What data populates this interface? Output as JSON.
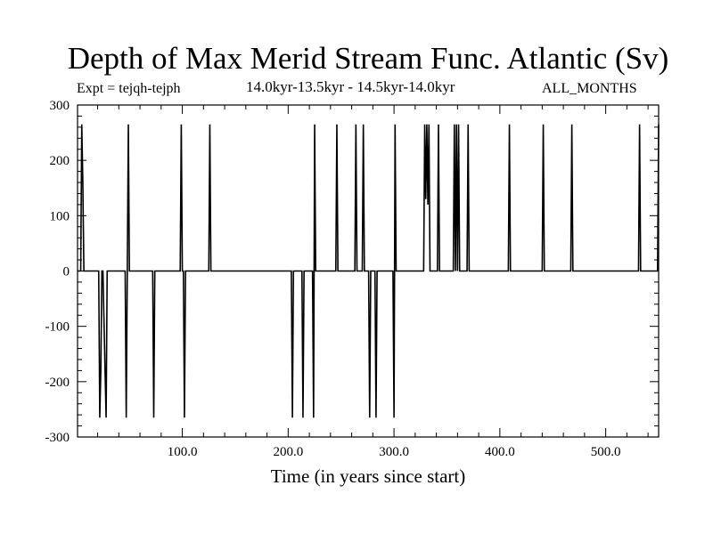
{
  "header": {
    "title": "Depth of Max Merid Stream Func. Atlantic (Sv)",
    "experiment": "Expt = tejqh-tejph",
    "subtitle": "14.0kyr-13.5kyr - 14.5kyr-14.0kyr",
    "months": "ALL_MONTHS"
  },
  "chart_data": {
    "type": "line",
    "title": "Depth of Max Merid Stream Func. Atlantic (Sv)",
    "xlabel": "Time (in years since start)",
    "ylabel": "",
    "xlim": [
      1,
      550
    ],
    "ylim": [
      -300,
      300
    ],
    "x_ticks": [
      {
        "value": 100,
        "label": "100.0"
      },
      {
        "value": 200,
        "label": "200.0"
      },
      {
        "value": 300,
        "label": "300.0"
      },
      {
        "value": 400,
        "label": "400.0"
      },
      {
        "value": 500,
        "label": "500.0"
      }
    ],
    "y_ticks": [
      {
        "value": 300,
        "label": "300"
      },
      {
        "value": 200,
        "label": "200"
      },
      {
        "value": 100,
        "label": "100"
      },
      {
        "value": 0,
        "label": "0"
      },
      {
        "value": -100,
        "label": "-100"
      },
      {
        "value": -200,
        "label": "-200"
      },
      {
        "value": -300,
        "label": "-300"
      }
    ],
    "grid": false,
    "series": [
      {
        "x": [
          1,
          4,
          5,
          6,
          7,
          8,
          21,
          22,
          23,
          24,
          25,
          27,
          28,
          29,
          30,
          31,
          32,
          46,
          47,
          48,
          49,
          50,
          51,
          72,
          73,
          74,
          98,
          99,
          100,
          101,
          102,
          103,
          104,
          125,
          126,
          127,
          203,
          204,
          205,
          206,
          213,
          214,
          215,
          216,
          223,
          224,
          225,
          226,
          227,
          245,
          246,
          247,
          263,
          264,
          265,
          270,
          271,
          272,
          276,
          277,
          278,
          282,
          283,
          284,
          299,
          300,
          301,
          302,
          303,
          328,
          329,
          330,
          331,
          332,
          333,
          334,
          341,
          342,
          343,
          356,
          357,
          358,
          359,
          360,
          361,
          362,
          369,
          370,
          371,
          408,
          409,
          410,
          440,
          441,
          442,
          467,
          468,
          469,
          531,
          532,
          533,
          549,
          550
        ],
        "y": [
          0,
          0,
          265,
          160,
          0,
          0,
          0,
          -265,
          -180,
          0,
          0,
          -180,
          -265,
          0,
          0,
          0,
          0,
          0,
          -265,
          0,
          265,
          0,
          0,
          0,
          -265,
          0,
          0,
          265,
          0,
          0,
          -265,
          0,
          0,
          0,
          265,
          0,
          0,
          -265,
          0,
          0,
          0,
          -265,
          0,
          0,
          0,
          -265,
          265,
          0,
          0,
          0,
          265,
          0,
          0,
          265,
          0,
          0,
          265,
          0,
          0,
          -265,
          0,
          0,
          -265,
          0,
          0,
          -265,
          265,
          0,
          0,
          0,
          265,
          130,
          265,
          120,
          265,
          0,
          0,
          265,
          0,
          0,
          265,
          0,
          265,
          0,
          265,
          0,
          0,
          265,
          0,
          0,
          265,
          0,
          0,
          265,
          0,
          0,
          265,
          0,
          0,
          265,
          0,
          0,
          265
        ]
      }
    ]
  }
}
